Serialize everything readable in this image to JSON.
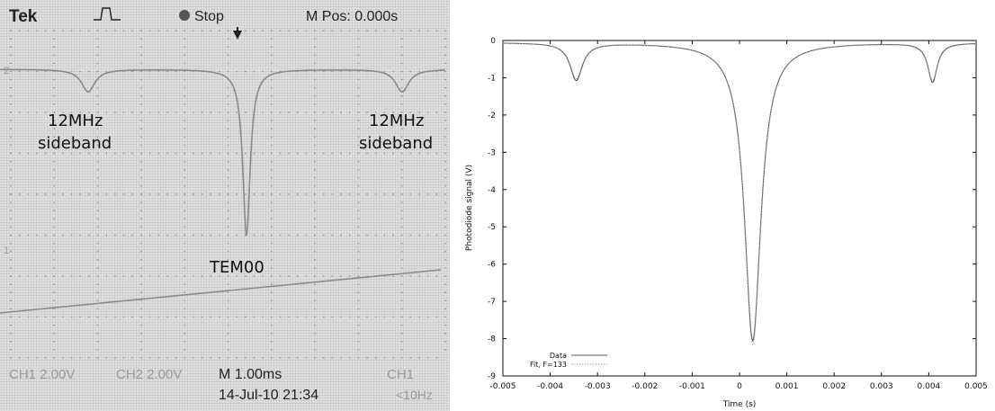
{
  "scope": {
    "brand": "Tek",
    "trigger_status": "Stop",
    "m_pos": "M Pos: 0.000s",
    "ch1_scale": "CH1  2.00V",
    "ch2_scale": "CH2  2.00V",
    "timebase": "M 1.00ms",
    "timestamp": "14-Jul-10 21:34",
    "ch1_marker": "CH1",
    "freq": "<10Hz",
    "marker_2": "2",
    "marker_1": "1",
    "annotations": {
      "left_sideband_line1": "12MHz",
      "left_sideband_line2": "sideband",
      "right_sideband_line1": "12MHz",
      "right_sideband_line2": "sideband",
      "tem00": "TEM00"
    },
    "colors": {
      "screen": "#dedede",
      "trace": "#8a8a8a",
      "grid": "#a8a8a8"
    }
  },
  "chart_data": {
    "type": "line",
    "title": "",
    "xlabel": "Time (s)",
    "ylabel": "Photodiode signal (V)",
    "xlim": [
      -0.005,
      0.005
    ],
    "ylim": [
      -9,
      0
    ],
    "xticks": [
      "-0.005",
      "-0.004",
      "-0.003",
      "-0.002",
      "-0.001",
      "0",
      "0.001",
      "0.002",
      "0.003",
      "0.004",
      "0.005"
    ],
    "yticks": [
      "0",
      "-1",
      "-2",
      "-3",
      "-4",
      "-5",
      "-6",
      "-7",
      "-8",
      "-9"
    ],
    "legend_position": "bottom-left",
    "baseline": -0.05,
    "series": [
      {
        "name": "Data",
        "peaks": [
          {
            "center": -0.00345,
            "depth": 1.0,
            "width": 0.00016
          },
          {
            "center": 0.00028,
            "depth": 8.0,
            "width": 0.00021
          },
          {
            "center": 0.00408,
            "depth": 1.05,
            "width": 0.00012
          }
        ],
        "color": "#555555"
      },
      {
        "name": "Fit, F=133",
        "peaks": [
          {
            "center": -0.00345,
            "depth": 0.95,
            "width": 0.00016
          },
          {
            "center": 0.00028,
            "depth": 8.1,
            "width": 0.00021
          },
          {
            "center": 0.00408,
            "depth": 1.0,
            "width": 0.00013
          }
        ],
        "color": "#9a9a9a"
      }
    ]
  }
}
